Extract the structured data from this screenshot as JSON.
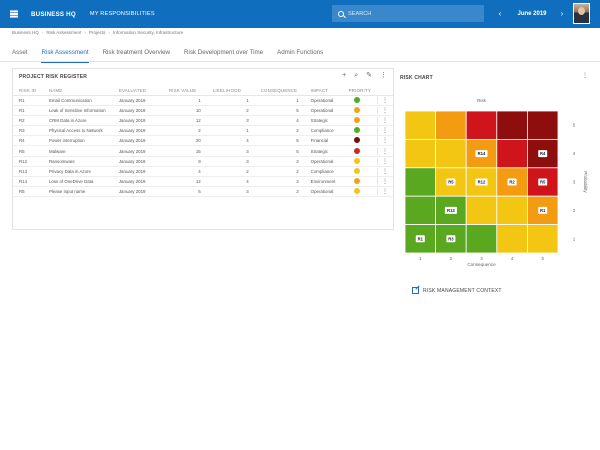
{
  "header": {
    "brand": "BUSINESS HQ",
    "my_responsibilities": "MY RESPONSIBILITIES",
    "search_placeholder": "SEARCH",
    "period": "June 2019",
    "prev_icon": "chevron-left-icon",
    "next_icon": "chevron-right-icon"
  },
  "breadcrumb": [
    "Business HQ",
    "Risk Assessment",
    "Projects",
    "Information Security, Infrastructure"
  ],
  "tabs": [
    {
      "label": "Asset",
      "active": false
    },
    {
      "label": "Risk Assessment",
      "active": true
    },
    {
      "label": "Risk treatment Overview",
      "active": false
    },
    {
      "label": "Risk Development over Time",
      "active": false
    },
    {
      "label": "Admin Functions",
      "active": false
    }
  ],
  "register": {
    "title": "PROJECT RISK REGISTER",
    "tool_icons": [
      "add-icon",
      "search-icon",
      "edit-icon",
      "more-vertical-icon"
    ],
    "columns": [
      "RISK ID",
      "NAME",
      "EVALUATED",
      "RISK VALUE",
      "LIKELIHOOD",
      "CONSEQUENCE",
      "IMPACT",
      "PRIORITY"
    ],
    "priority_colors": {
      "green": "#4caf2a",
      "yellow": "#f2c619",
      "orange": "#f0a11e",
      "red": "#c62d1f",
      "darkred": "#7b0c0c"
    },
    "rows": [
      {
        "id": "R1",
        "name": "Email Communication",
        "evaluated": "January 2019",
        "value": "1",
        "likelihood": "1",
        "consequence": "1",
        "impact": "Operational",
        "priority": "green"
      },
      {
        "id": "R1",
        "name": "Leak of Sensitive Information",
        "evaluated": "January 2019",
        "value": "10",
        "likelihood": "2",
        "consequence": "5",
        "impact": "Operational",
        "priority": "orange"
      },
      {
        "id": "R2",
        "name": "CRM Data in Azure",
        "evaluated": "January 2019",
        "value": "12",
        "likelihood": "3",
        "consequence": "4",
        "impact": "Strategic",
        "priority": "orange"
      },
      {
        "id": "R3",
        "name": "Physical Access to Network",
        "evaluated": "January 2019",
        "value": "2",
        "likelihood": "1",
        "consequence": "2",
        "impact": "Compliance",
        "priority": "green"
      },
      {
        "id": "R4",
        "name": "Power interruption",
        "evaluated": "January 2019",
        "value": "20",
        "likelihood": "4",
        "consequence": "5",
        "impact": "Financial",
        "priority": "darkred"
      },
      {
        "id": "R5",
        "name": "Malware",
        "evaluated": "January 2019",
        "value": "15",
        "likelihood": "3",
        "consequence": "5",
        "impact": "Strategic",
        "priority": "red"
      },
      {
        "id": "R12",
        "name": "Ransomware",
        "evaluated": "January 2019",
        "value": "9",
        "likelihood": "3",
        "consequence": "3",
        "impact": "Operational",
        "priority": "yellow"
      },
      {
        "id": "R13",
        "name": "Privacy Data in Azure",
        "evaluated": "January 2019",
        "value": "4",
        "likelihood": "2",
        "consequence": "2",
        "impact": "Compliance",
        "priority": "yellow"
      },
      {
        "id": "R14",
        "name": "Loss of OneDrive Data",
        "evaluated": "January 2019",
        "value": "12",
        "likelihood": "4",
        "consequence": "3",
        "impact": "Environment",
        "priority": "orange"
      },
      {
        "id": "R5",
        "name": "Please input name",
        "evaluated": "January 2019",
        "value": "6",
        "likelihood": "3",
        "consequence": "2",
        "impact": "Operational",
        "priority": "yellow"
      }
    ]
  },
  "chart_data": {
    "type": "heatmap",
    "title": "RISK CHART",
    "top_label": "Risk",
    "xlabel": "Consequence",
    "ylabel": "Probability",
    "x_ticks": [
      "1",
      "2",
      "3",
      "4",
      "5"
    ],
    "y_ticks": [
      "5",
      "4",
      "3",
      "2",
      "1"
    ],
    "cell_colors": {
      "green": "#5aa820",
      "yellow": "#f3c613",
      "orange": "#f39c12",
      "red": "#d0141c",
      "darkred": "#8e0d0d"
    },
    "grid": [
      [
        "yellow",
        "orange",
        "red",
        "darkred",
        "darkred"
      ],
      [
        "yellow",
        "yellow",
        "orange",
        "red",
        "darkred"
      ],
      [
        "green",
        "yellow",
        "yellow",
        "orange",
        "red"
      ],
      [
        "green",
        "green",
        "yellow",
        "yellow",
        "orange"
      ],
      [
        "green",
        "green",
        "green",
        "yellow",
        "yellow"
      ]
    ],
    "markers": [
      {
        "label": "R14",
        "consequence": 3,
        "likelihood": 4
      },
      {
        "label": "R4",
        "consequence": 5,
        "likelihood": 4
      },
      {
        "label": "R5",
        "consequence": 2,
        "likelihood": 3
      },
      {
        "label": "R12",
        "consequence": 3,
        "likelihood": 3
      },
      {
        "label": "R2",
        "consequence": 4,
        "likelihood": 3
      },
      {
        "label": "R5",
        "consequence": 5,
        "likelihood": 3
      },
      {
        "label": "R13",
        "consequence": 2,
        "likelihood": 2
      },
      {
        "label": "R1",
        "consequence": 5,
        "likelihood": 2
      },
      {
        "label": "R1",
        "consequence": 1,
        "likelihood": 1
      },
      {
        "label": "R3",
        "consequence": 2,
        "likelihood": 1
      }
    ]
  },
  "context_link": "RISK MANAGEMENT CONTEXT"
}
